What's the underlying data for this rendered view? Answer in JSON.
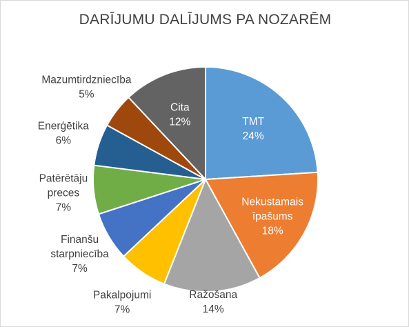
{
  "chart_data": {
    "type": "pie",
    "title": "DARĪJUMU DALĪJUMS PA NOZARĒM",
    "slices": [
      {
        "label": "TMT",
        "label_lines": [
          "TMT"
        ],
        "value": 24,
        "value_text": "24%",
        "color": "#5b9bd5",
        "text_color": "#ffffff"
      },
      {
        "label": "Nekustamais īpašums",
        "label_lines": [
          "Nekustamais",
          "īpašums"
        ],
        "value": 18,
        "value_text": "18%",
        "color": "#ed7d31",
        "text_color": "#ffffff"
      },
      {
        "label": "Ražošana",
        "label_lines": [
          "Ražošana"
        ],
        "value": 14,
        "value_text": "14%",
        "color": "#a5a5a5",
        "text_color": "#404040"
      },
      {
        "label": "Pakalpojumi",
        "label_lines": [
          "Pakalpojumi"
        ],
        "value": 7,
        "value_text": "7%",
        "color": "#ffc000",
        "text_color": "#404040"
      },
      {
        "label": "Finanšu starpniecība",
        "label_lines": [
          "Finanšu",
          "starpniecība"
        ],
        "value": 7,
        "value_text": "7%",
        "color": "#4472c4",
        "text_color": "#404040"
      },
      {
        "label": "Patērētāju preces",
        "label_lines": [
          "Patērētāju",
          "preces"
        ],
        "value": 7,
        "value_text": "7%",
        "color": "#70ad47",
        "text_color": "#404040"
      },
      {
        "label": "Enerģētika",
        "label_lines": [
          "Enerģētika"
        ],
        "value": 6,
        "value_text": "6%",
        "color": "#255e91",
        "text_color": "#404040"
      },
      {
        "label": "Mazumtirdzniecība",
        "label_lines": [
          "Mazumtirdzniecība"
        ],
        "value": 5,
        "value_text": "5%",
        "color": "#9e480e",
        "text_color": "#404040"
      },
      {
        "label": "Cita",
        "label_lines": [
          "Cita"
        ],
        "value": 12,
        "value_text": "12%",
        "color": "#636363",
        "text_color": "#ffffff"
      }
    ]
  }
}
